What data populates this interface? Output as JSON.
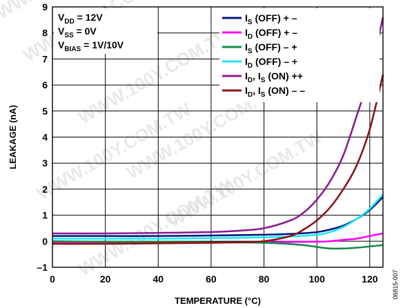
{
  "figure_id": "06815-007",
  "watermark": "WWW.100Y.COM.TW",
  "conditions": [
    {
      "main": "V",
      "sub": "DD",
      "rest": " = 12V"
    },
    {
      "main": "V",
      "sub": "SS",
      "rest": " = 0V"
    },
    {
      "main": "V",
      "sub": "BIAS",
      "rest": " = 1V/10V"
    }
  ],
  "chart_data": {
    "type": "line",
    "xlabel": "TEMPERATURE (°C)",
    "ylabel": "LEAKAGE (nA)",
    "xlim": [
      0,
      125
    ],
    "ylim": [
      -1,
      9
    ],
    "xticks": [
      0,
      20,
      40,
      60,
      80,
      100,
      120
    ],
    "yticks": [
      -1,
      0,
      1,
      2,
      3,
      4,
      5,
      6,
      7,
      8,
      9
    ],
    "grid": true,
    "legend_position": "top-right",
    "series": [
      {
        "name": "I_S (OFF) + –",
        "label_parts": {
          "main": "I",
          "sub": "S",
          "rest": " (OFF) + –"
        },
        "color": "#00187a",
        "x": [
          0,
          20,
          40,
          60,
          80,
          90,
          100,
          105,
          110,
          115,
          120,
          125
        ],
        "y": [
          0.2,
          0.2,
          0.2,
          0.22,
          0.25,
          0.28,
          0.35,
          0.45,
          0.6,
          0.85,
          1.2,
          1.7
        ]
      },
      {
        "name": "I_D (OFF) + –",
        "label_parts": {
          "main": "I",
          "sub": "D",
          "rest": " (OFF) + –"
        },
        "color": "#ff00ff",
        "x": [
          0,
          20,
          40,
          60,
          80,
          90,
          95,
          100,
          105,
          110,
          115,
          120,
          125
        ],
        "y": [
          -0.05,
          -0.05,
          -0.05,
          -0.05,
          -0.04,
          -0.03,
          -0.02,
          -0.02,
          0.0,
          0.05,
          0.1,
          0.2,
          0.3
        ]
      },
      {
        "name": "I_S (OFF) – +",
        "label_parts": {
          "main": "I",
          "sub": "S",
          "rest": " (OFF) – +"
        },
        "color": "#178a4a",
        "x": [
          0,
          20,
          40,
          60,
          75,
          85,
          95,
          100,
          105,
          110,
          115,
          120,
          125
        ],
        "y": [
          0.0,
          -0.02,
          -0.03,
          -0.04,
          -0.05,
          -0.08,
          -0.15,
          -0.22,
          -0.28,
          -0.28,
          -0.25,
          -0.2,
          -0.15
        ]
      },
      {
        "name": "I_D (OFF) – +",
        "label_parts": {
          "main": "I",
          "sub": "D",
          "rest": " (OFF) – +"
        },
        "color": "#1de8f2",
        "x": [
          0,
          20,
          40,
          60,
          80,
          90,
          100,
          105,
          110,
          115,
          120,
          125
        ],
        "y": [
          0.1,
          0.1,
          0.1,
          0.12,
          0.15,
          0.18,
          0.25,
          0.35,
          0.55,
          0.85,
          1.25,
          1.8
        ]
      },
      {
        "name": "I_D, I_S (ON) ++",
        "label_parts": {
          "main": "I",
          "sub": "D",
          "rest": ", I",
          "sub2": "S",
          "rest2": " (ON) ++"
        },
        "color": "#8b1e8e",
        "x": [
          0,
          20,
          40,
          60,
          70,
          80,
          90,
          95,
          100,
          105,
          110,
          115,
          120,
          125
        ],
        "y": [
          0.3,
          0.3,
          0.32,
          0.35,
          0.4,
          0.5,
          0.8,
          1.1,
          1.6,
          2.3,
          3.3,
          4.8,
          6.4,
          8.6
        ]
      },
      {
        "name": "I_D, I_S (ON) – –",
        "label_parts": {
          "main": "I",
          "sub": "D",
          "rest": ", I",
          "sub2": "S",
          "rest2": " (ON) – –"
        },
        "color": "#8b1414",
        "x": [
          0,
          20,
          40,
          60,
          70,
          80,
          90,
          95,
          100,
          105,
          110,
          115,
          120,
          125
        ],
        "y": [
          -0.1,
          -0.1,
          -0.08,
          -0.06,
          -0.04,
          0.0,
          0.2,
          0.45,
          0.8,
          1.3,
          2.0,
          2.9,
          4.3,
          6.4
        ]
      }
    ]
  }
}
